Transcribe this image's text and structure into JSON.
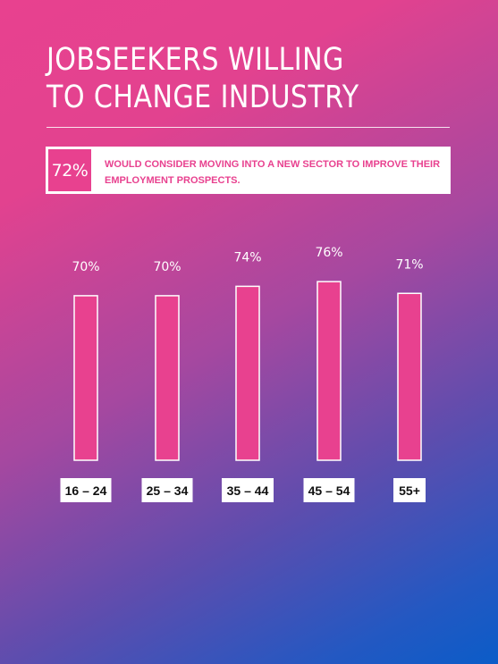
{
  "title": {
    "line1": "JOBSEEKERS WILLING",
    "line2": "TO CHANGE INDUSTRY"
  },
  "callout": {
    "stat": "72%",
    "text": "WOULD CONSIDER MOVING INTO A NEW SECTOR TO IMPROVE THEIR EMPLOYMENT PROSPECTS."
  },
  "colors": {
    "accent": "#e8418f",
    "gradient_start": "#e8418f",
    "gradient_end": "#0b5cc8"
  },
  "chart_data": {
    "type": "bar",
    "categories": [
      "16 – 24",
      "25 – 34",
      "35 – 44",
      "45 – 54",
      "55+"
    ],
    "values": [
      70,
      70,
      74,
      76,
      71
    ],
    "value_labels": [
      "70%",
      "70%",
      "74%",
      "76%",
      "71%"
    ],
    "title": "",
    "xlabel": "",
    "ylabel": "",
    "grid": false
  }
}
